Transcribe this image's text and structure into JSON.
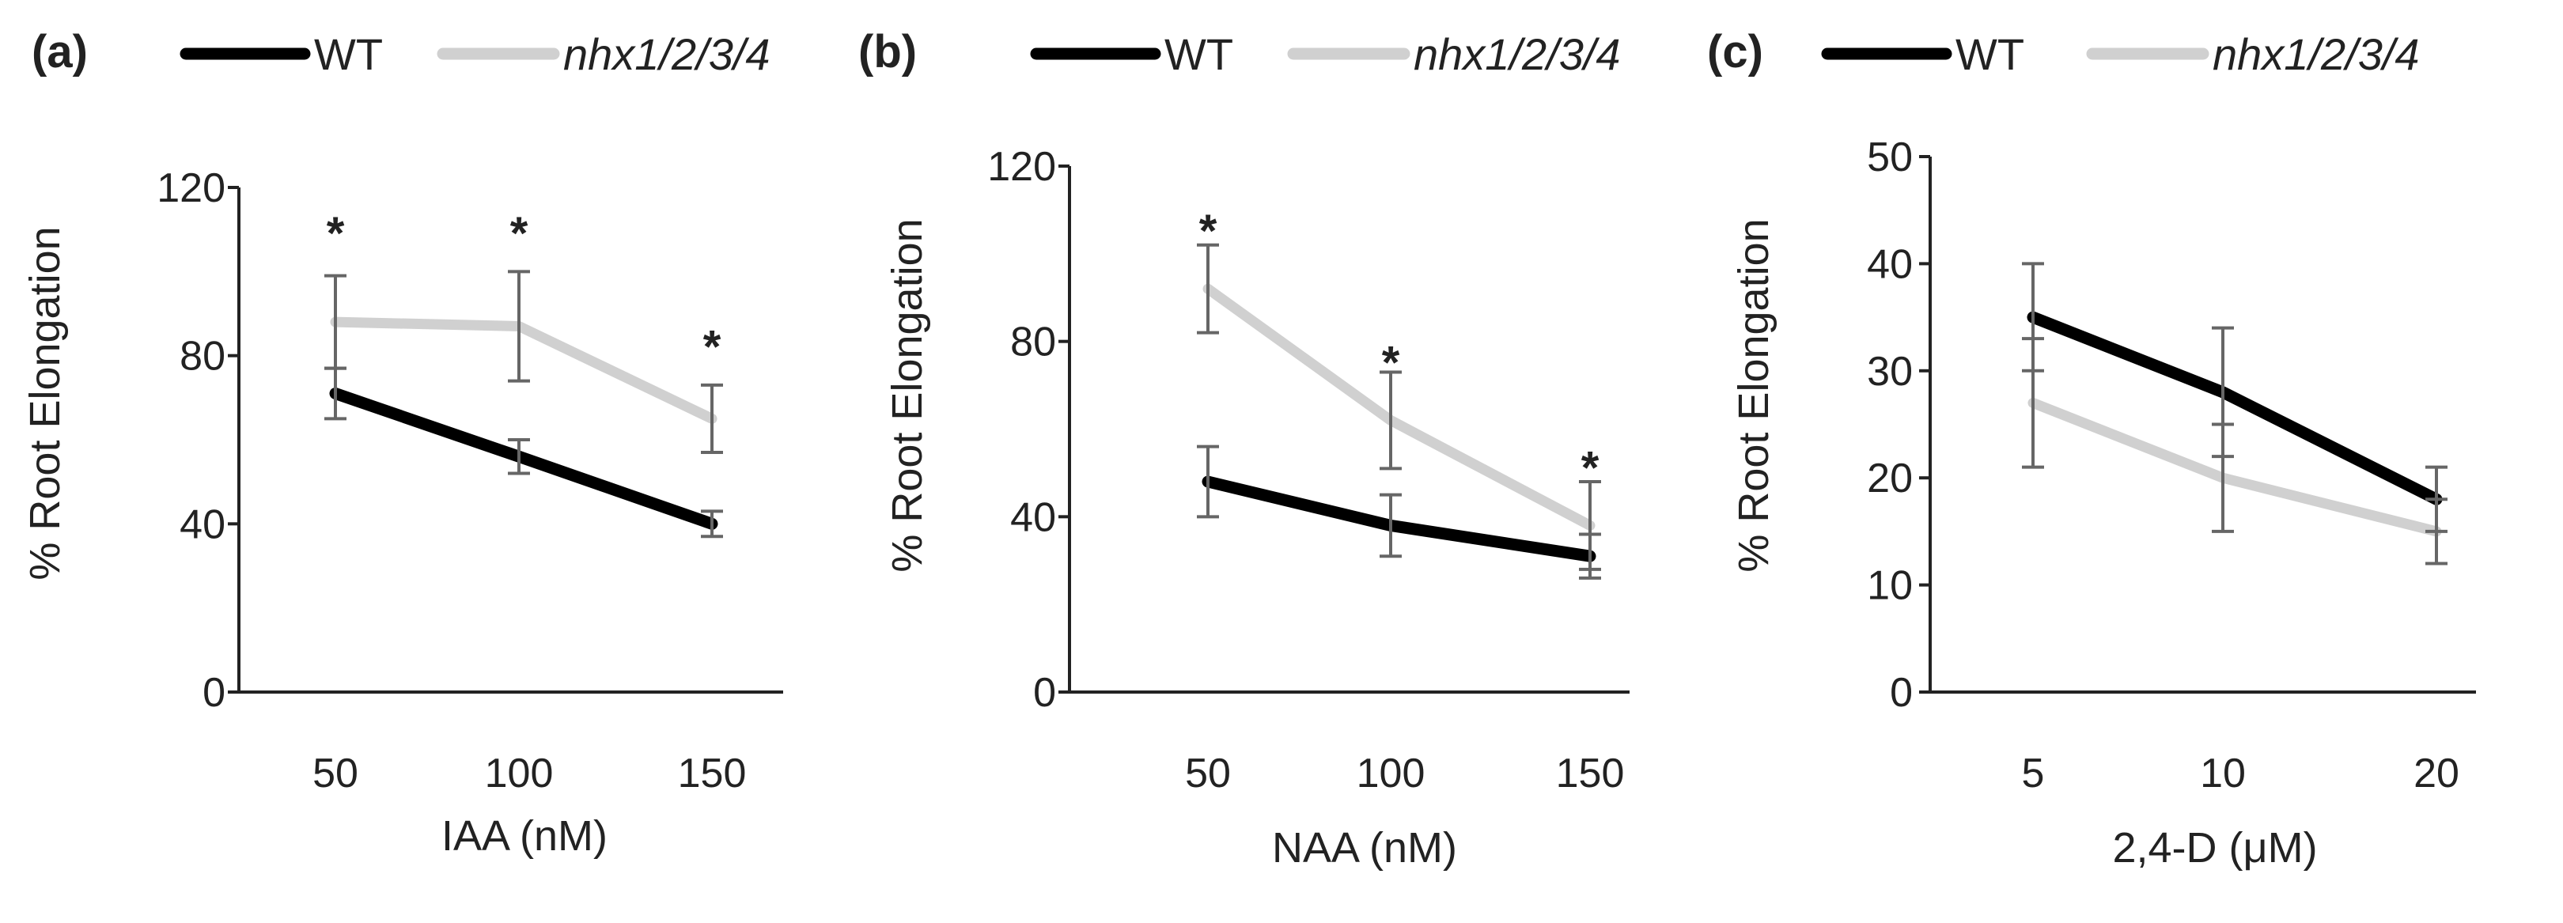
{
  "chart_data": [
    {
      "type": "line",
      "panel_label": "(a)",
      "categories": [
        "50",
        "100",
        "150"
      ],
      "xlabel": "IAA (nM)",
      "ylabel": "% Root Elongation",
      "ylim": [
        0,
        120
      ],
      "yticks": [
        "0",
        "40",
        "80",
        "120"
      ],
      "ytick_values": [
        0,
        40,
        80,
        120
      ],
      "series": [
        {
          "name": "WT",
          "values": [
            71,
            56,
            40
          ],
          "errors": [
            6,
            4,
            3
          ],
          "color": "#000000"
        },
        {
          "name": "nhx1/2/3/4",
          "values": [
            88,
            87,
            65
          ],
          "errors": [
            11,
            13,
            8
          ],
          "color": "#d0d0d0"
        }
      ],
      "significance": [
        "*",
        "*",
        "*"
      ],
      "significance_y": [
        111,
        111,
        84
      ]
    },
    {
      "type": "line",
      "panel_label": "(b)",
      "categories": [
        "50",
        "100",
        "150"
      ],
      "xlabel": "NAA (nM)",
      "ylabel": "% Root Elongation",
      "ylim": [
        0,
        120
      ],
      "yticks": [
        "0",
        "40",
        "80",
        "120"
      ],
      "ytick_values": [
        0,
        40,
        80,
        120
      ],
      "series": [
        {
          "name": "WT",
          "values": [
            48,
            38,
            31
          ],
          "errors": [
            8,
            7,
            5
          ],
          "color": "#000000"
        },
        {
          "name": "nhx1/2/3/4",
          "values": [
            92,
            62,
            38
          ],
          "errors": [
            10,
            11,
            10
          ],
          "color": "#d0d0d0"
        }
      ],
      "significance": [
        "*",
        "*",
        ""
      ],
      "significance_y": [
        107,
        77,
        0
      ],
      "extra_marks": [
        {
          "text": "*",
          "category_index": 2,
          "y": 53
        }
      ]
    },
    {
      "type": "line",
      "panel_label": "(c)",
      "categories": [
        "5",
        "10",
        "20"
      ],
      "xlabel": "2,4-D (μM)",
      "ylabel": "% Root Elongation",
      "ylim": [
        0,
        50
      ],
      "yticks": [
        "0",
        "10",
        "20",
        "30",
        "40",
        "50"
      ],
      "ytick_values": [
        0,
        10,
        20,
        30,
        40,
        50
      ],
      "series": [
        {
          "name": "WT",
          "values": [
            35,
            28,
            18
          ],
          "errors": [
            5,
            6,
            3
          ],
          "color": "#000000"
        },
        {
          "name": "nhx1/2/3/4",
          "values": [
            27,
            20,
            15
          ],
          "errors": [
            6,
            5,
            3
          ],
          "color": "#d0d0d0"
        }
      ],
      "significance": [
        "",
        "",
        ""
      ],
      "significance_y": [
        0,
        0,
        0
      ]
    }
  ]
}
